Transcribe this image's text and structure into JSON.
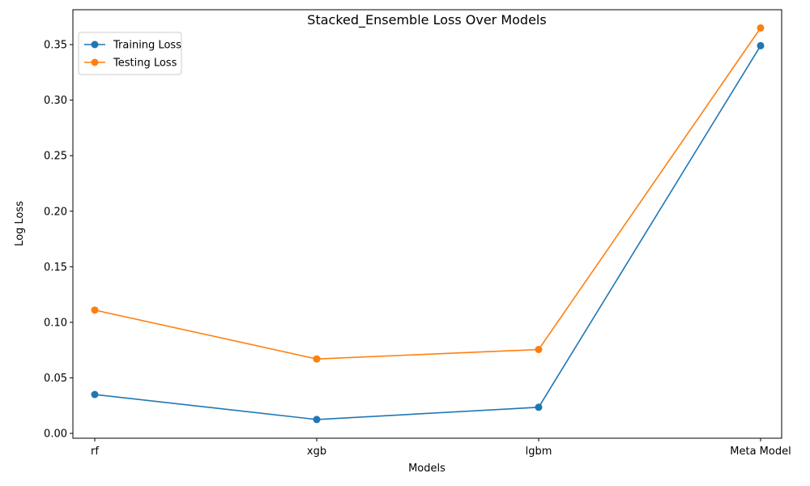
{
  "chart_data": {
    "type": "line",
    "title": "Stacked_Ensemble Loss Over Models",
    "xlabel": "Models",
    "ylabel": "Log Loss",
    "categories": [
      "rf",
      "xgb",
      "lgbm",
      "Meta Model"
    ],
    "series": [
      {
        "name": "Training Loss",
        "color": "#1f77b4",
        "values": [
          0.035,
          0.0125,
          0.0235,
          0.349
        ]
      },
      {
        "name": "Testing Loss",
        "color": "#ff7f0e",
        "values": [
          0.111,
          0.067,
          0.0755,
          0.365
        ]
      }
    ],
    "ylim": [
      -0.00435,
      0.3814
    ],
    "yticks": [
      0.0,
      0.05,
      0.1,
      0.15,
      0.2,
      0.25,
      0.3,
      0.35
    ],
    "ytick_labels": [
      "0.00",
      "0.05",
      "0.10",
      "0.15",
      "0.20",
      "0.25",
      "0.30",
      "0.35"
    ],
    "grid": false,
    "legend_position": "upper-left",
    "marker": "circle"
  }
}
